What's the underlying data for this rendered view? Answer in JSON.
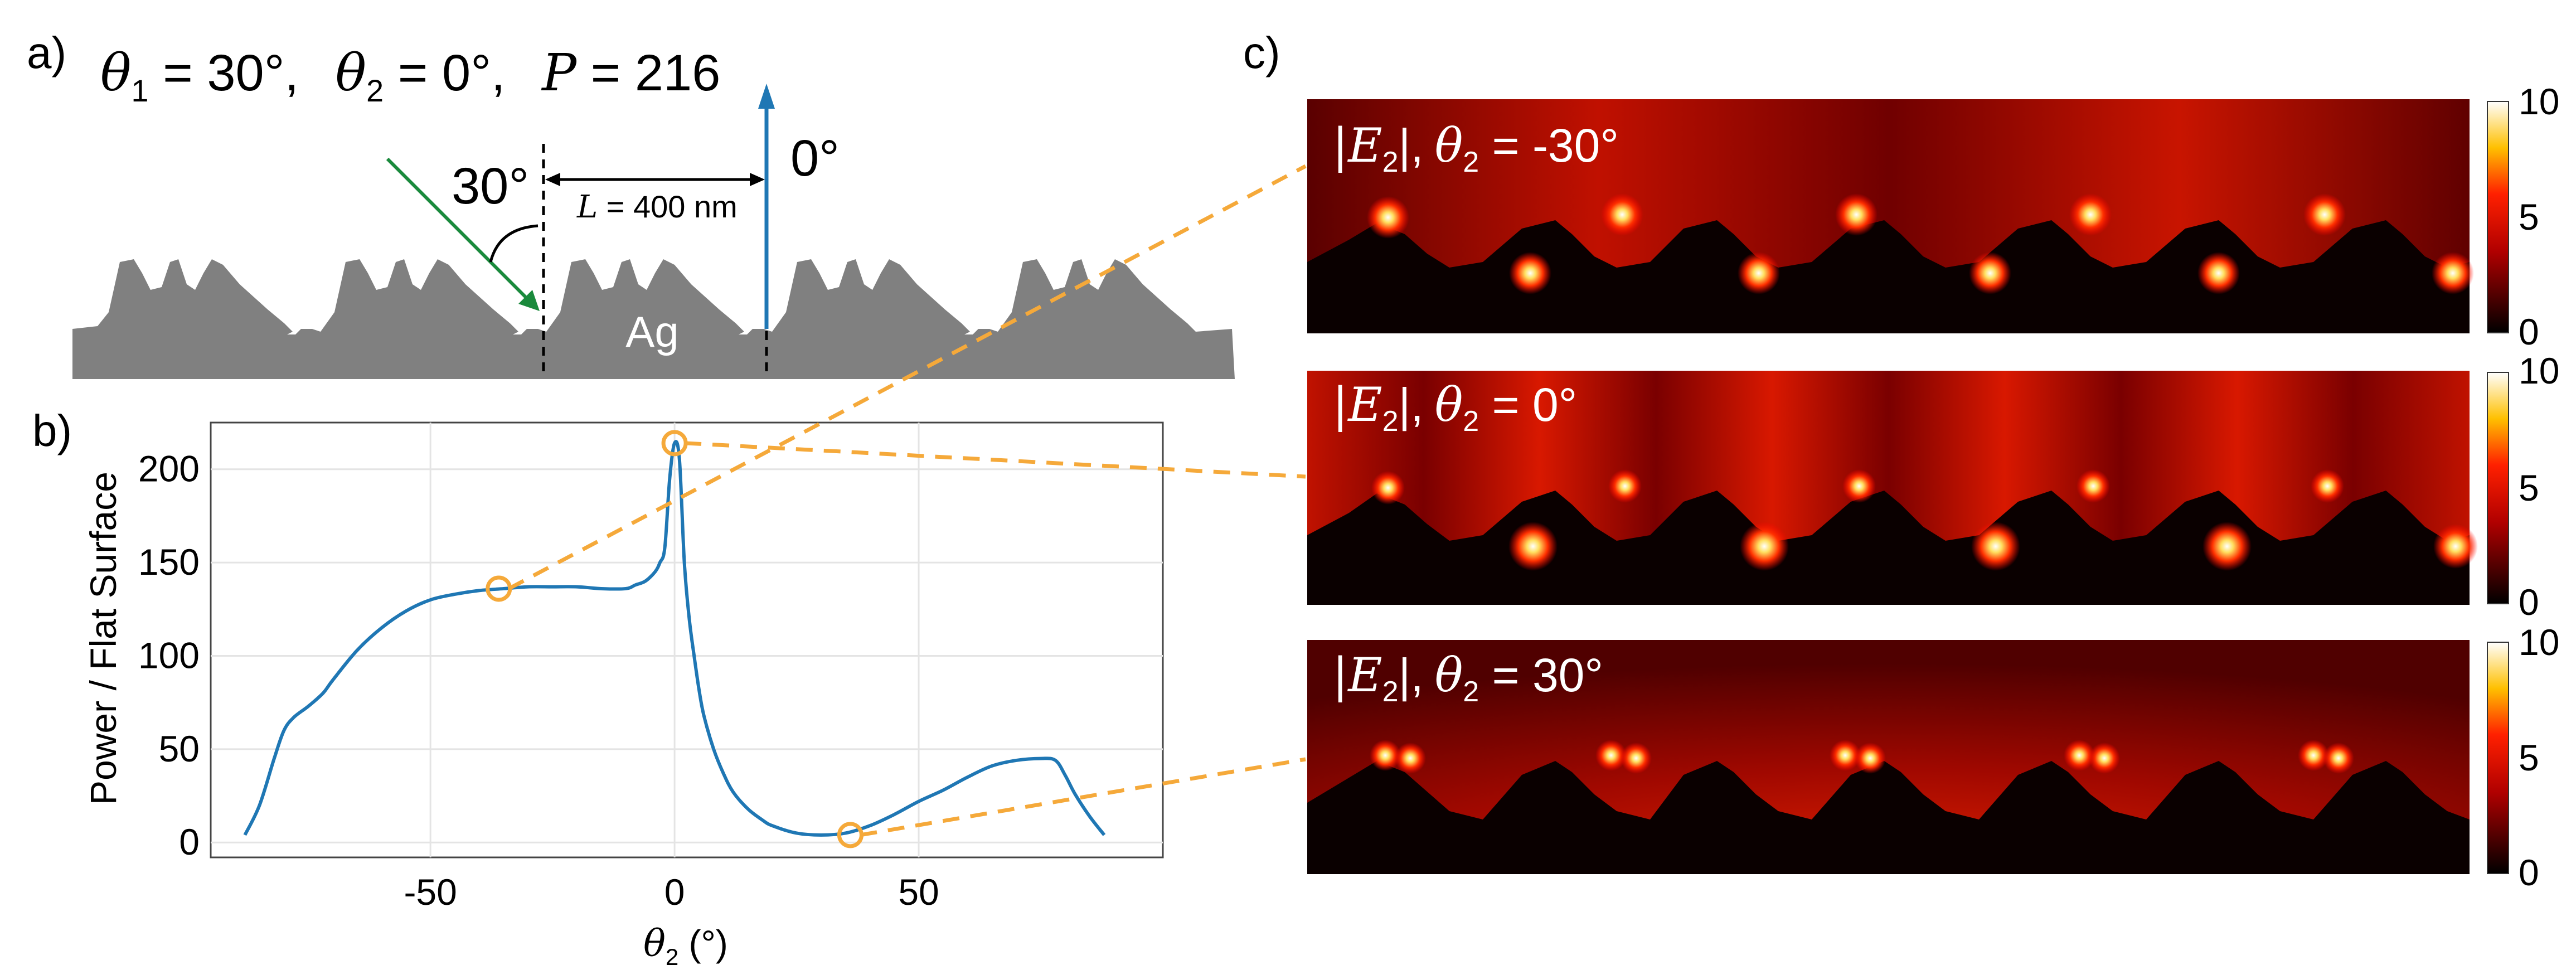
{
  "panel_a": {
    "label": "a)",
    "header": {
      "theta1_sym": "θ",
      "theta1_sub": "1",
      "theta1_val": " = 30°,",
      "theta2_sym": "θ",
      "theta2_sub": "2",
      "theta2_val": " = 0°,",
      "p_sym": "P",
      "p_val": " = 216"
    },
    "incidence_angle_label": "30°",
    "outgoing_angle_label": "0°",
    "period_sym": "L",
    "period_val": " = 400 nm",
    "material_label": "Ag",
    "colors": {
      "incident_arrow": "#1a8a3c",
      "outgoing_arrow": "#1f77b4",
      "metal": "#808080"
    }
  },
  "panel_b": {
    "label": "b)",
    "chart_data": {
      "type": "line",
      "xlabel_sym": "θ",
      "xlabel_sub": "2",
      "xlabel_unit": " (°)",
      "ylabel": "Power / Flat Surface",
      "xlim": [
        -95,
        100
      ],
      "ylim": [
        -8,
        225
      ],
      "xticks": [
        -50,
        0,
        50
      ],
      "yticks": [
        0,
        50,
        100,
        150,
        200
      ],
      "grid": true,
      "line_color": "#1f77b4",
      "x": [
        -88,
        -85,
        -82,
        -80,
        -78,
        -75,
        -72,
        -70,
        -65,
        -60,
        -55,
        -50,
        -45,
        -40,
        -35,
        -30,
        -25,
        -20,
        -15,
        -10,
        -8,
        -6,
        -4,
        -3,
        -2,
        -1,
        0,
        1,
        2,
        3,
        4,
        5,
        6,
        8,
        10,
        12,
        15,
        18,
        20,
        25,
        30,
        35,
        40,
        45,
        50,
        55,
        60,
        65,
        70,
        75,
        78,
        80,
        82,
        85,
        88
      ],
      "y": [
        4,
        20,
        45,
        60,
        67,
        73,
        80,
        87,
        103,
        115,
        124,
        130,
        133,
        135,
        136,
        137,
        137,
        137,
        136,
        136,
        138,
        140,
        145,
        150,
        158,
        195,
        214,
        205,
        150,
        120,
        100,
        82,
        68,
        50,
        37,
        27,
        18,
        12,
        9,
        5,
        4,
        5,
        9,
        15,
        22,
        28,
        35,
        41,
        44,
        45,
        44,
        36,
        26,
        14,
        4
      ],
      "markers": [
        {
          "x": -36,
          "y": 136
        },
        {
          "x": 0,
          "y": 214
        },
        {
          "x": 36,
          "y": 4
        }
      ],
      "marker_color": "#f5a93a"
    }
  },
  "panel_c": {
    "label": "c)",
    "maps": [
      {
        "field_sym": "|E",
        "field_sub": "2",
        "field_close": "|,",
        "theta_sym": "θ",
        "theta_sub": "2",
        "value": " = -30°"
      },
      {
        "field_sym": "|E",
        "field_sub": "2",
        "field_close": "|,",
        "theta_sym": "θ",
        "theta_sub": "2",
        "value": " = 0°"
      },
      {
        "field_sym": "|E",
        "field_sub": "2",
        "field_close": "|,",
        "theta_sym": "θ",
        "theta_sub": "2",
        "value": " = 30°"
      }
    ],
    "colorbar": {
      "max_label": "10",
      "mid_label": "5",
      "min_label": "0"
    },
    "colors": {
      "connector": "#f5a93a"
    }
  }
}
